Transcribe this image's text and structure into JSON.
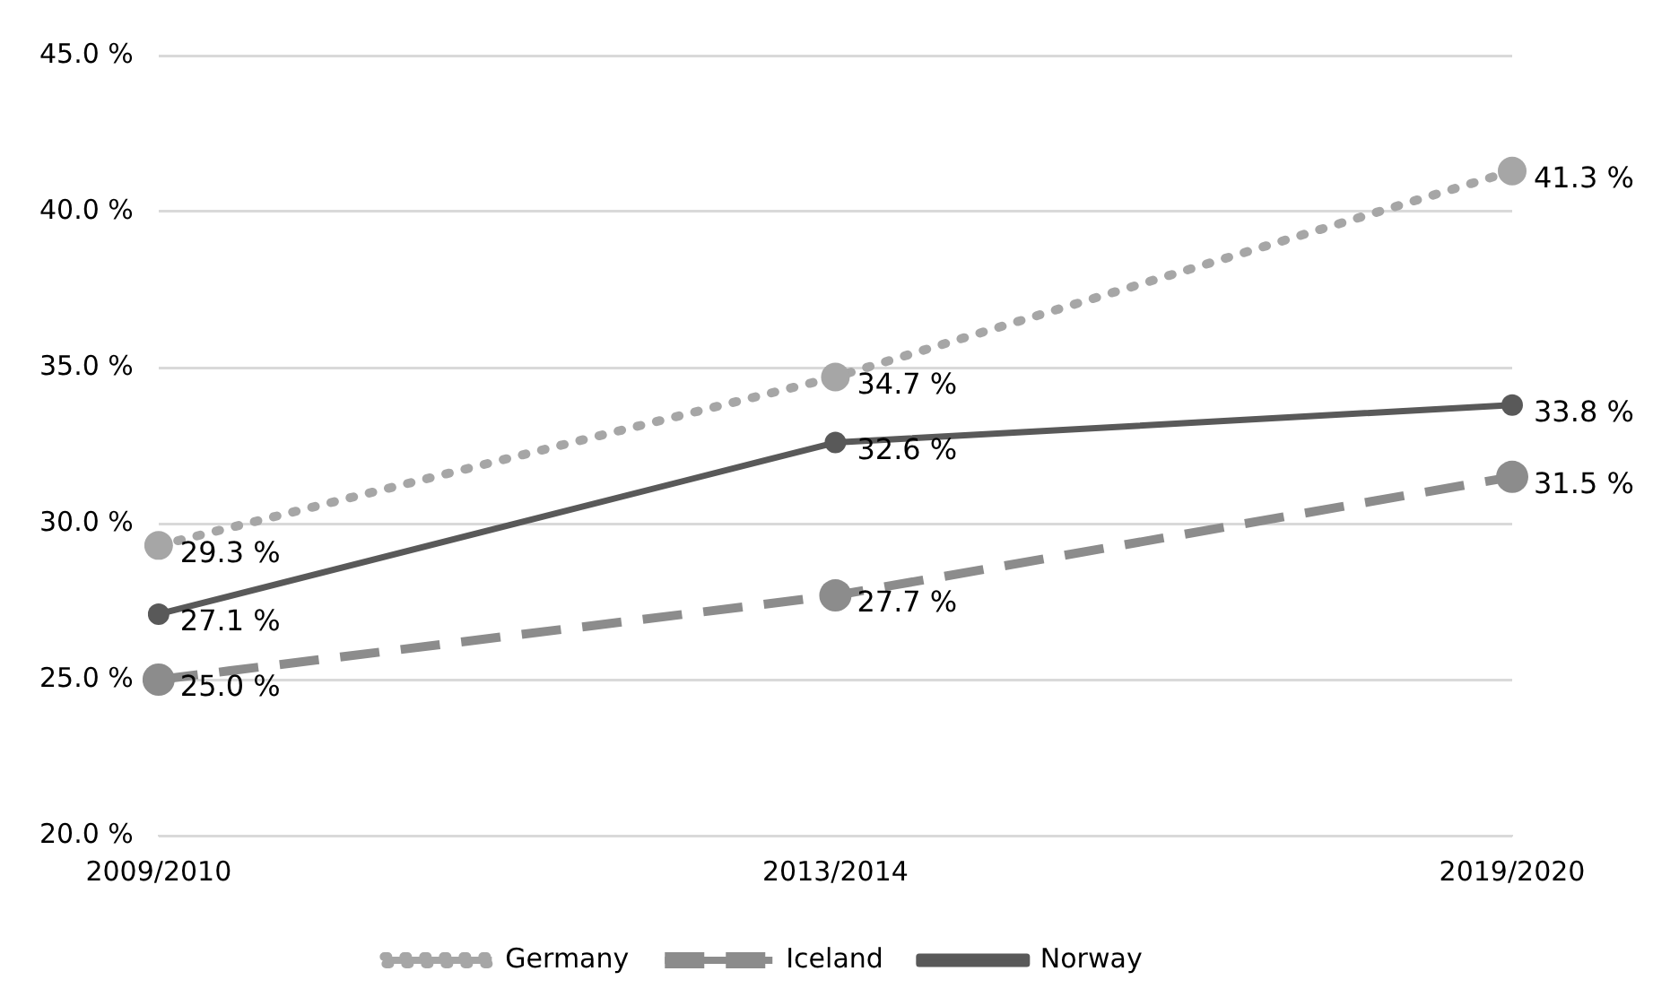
{
  "chart_data": {
    "type": "line",
    "categories": [
      "2009/2010",
      "2013/2014",
      "2019/2020"
    ],
    "series": [
      {
        "name": "Germany",
        "color": "#a6a6a6",
        "line_style": "dotted",
        "values": [
          29.3,
          34.7,
          41.3
        ],
        "value_labels": [
          "29.3 %",
          "34.7 %",
          "41.3 %"
        ]
      },
      {
        "name": "Iceland",
        "color": "#8c8c8c",
        "line_style": "dashed",
        "values": [
          25.0,
          27.7,
          31.5
        ],
        "value_labels": [
          "25.0 %",
          "27.7 %",
          "31.5 %"
        ]
      },
      {
        "name": "Norway",
        "color": "#595959",
        "line_style": "solid",
        "values": [
          27.1,
          32.6,
          33.8
        ],
        "value_labels": [
          "27.1 %",
          "32.6 %",
          "33.8 %"
        ]
      }
    ],
    "ylim": [
      20,
      45
    ],
    "yticks": [
      {
        "value": 20,
        "label": "20.0 %"
      },
      {
        "value": 25,
        "label": "25.0 %"
      },
      {
        "value": 30,
        "label": "30.0 %"
      },
      {
        "value": 35,
        "label": "35.0 %"
      },
      {
        "value": 40,
        "label": "40.0 %"
      },
      {
        "value": 45,
        "label": "45.0 %"
      }
    ],
    "grid": "y",
    "legend": "bottom",
    "marker": "circle"
  }
}
